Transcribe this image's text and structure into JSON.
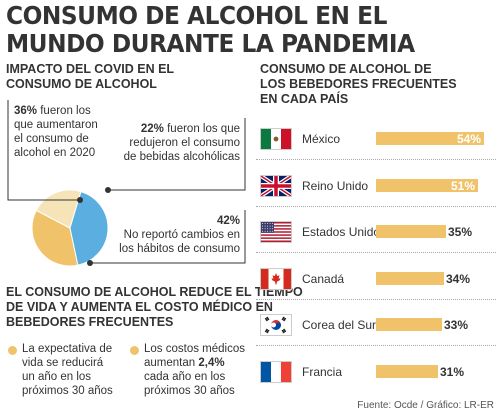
{
  "title_line1": "CONSUMO DE ALCOHOL EN EL",
  "title_line2": "MUNDO DURANTE LA PANDEMIA",
  "left": {
    "heading_line1": "IMPACTO DEL COVID EN EL",
    "heading_line2": "CONSUMO DE ALCOHOL",
    "stat_up_pct": "36%",
    "stat_up_l1": "fueron los",
    "stat_up_l2": "que aumentaron",
    "stat_up_l3": "el consumo de",
    "stat_up_l4": "alcohol en 2020",
    "stat_down_pct": "22%",
    "stat_down_l1": "fueron los que",
    "stat_down_l2": "redujeron el consumo",
    "stat_down_l3": "de bebidas alcohólicas",
    "stat_none_pct": "42%",
    "stat_none_l1": "No reportó cambios en",
    "stat_none_l2": "los hábitos de consumo"
  },
  "bottom": {
    "heading_line1": "EL CONSUMO DE ALCOHOL REDUCE EL TIEMPO",
    "heading_line2": "DE VIDA Y AUMENTA EL COSTO MÉDICO EN",
    "heading_line3": "BEBEDORES FRECUENTES",
    "item1_l1": "La expectativa de",
    "item1_l2": "vida se reducirá",
    "item1_l3": "un año en los",
    "item1_l4": "próximos 30 años",
    "item2_l1": "Los costos médicos",
    "item2_l2a": "aumentan",
    "item2_l2b": "2,4%",
    "item2_l3": "cada año en los",
    "item2_l4": "próximos 30 años"
  },
  "right": {
    "heading_line1": "CONSUMO DE ALCOHOL DE",
    "heading_line2": "LOS BEBEDORES FRECUENTES",
    "heading_line3": "EN CADA PAÍS"
  },
  "source": "Fuente: Ocde / Gráfico: LR-ER",
  "colors": {
    "pie_up": "#f0c36a",
    "pie_down": "#f7e3b8",
    "pie_none": "#5aaee0",
    "bar": "#f0c36a"
  },
  "chart_data": [
    {
      "type": "pie",
      "title": "IMPACTO DEL COVID EN EL CONSUMO DE ALCOHOL",
      "slices": [
        {
          "label": "fueron los que aumentaron el consumo de alcohol en 2020",
          "value": 36
        },
        {
          "label": "fueron los que redujeron el consumo de bebidas alcohólicas",
          "value": 22
        },
        {
          "label": "No reportó cambios en los hábitos de consumo",
          "value": 42
        }
      ]
    },
    {
      "type": "bar",
      "orientation": "horizontal",
      "title": "CONSUMO DE ALCOHOL DE LOS BEBEDORES FRECUENTES EN CADA PAÍS",
      "categories": [
        "México",
        "Reino Unido",
        "Estados Unidos",
        "Canadá",
        "Corea del Sur",
        "Francia"
      ],
      "labels": [
        "54%",
        "51%",
        "35%",
        "34%",
        "33%",
        "31%"
      ],
      "values": [
        54,
        51,
        35,
        34,
        33,
        31
      ],
      "flag_icons": [
        "mexico-flag-icon",
        "uk-flag-icon",
        "usa-flag-icon",
        "canada-flag-icon",
        "south-korea-flag-icon",
        "france-flag-icon"
      ],
      "xlim": [
        0,
        60
      ]
    }
  ]
}
